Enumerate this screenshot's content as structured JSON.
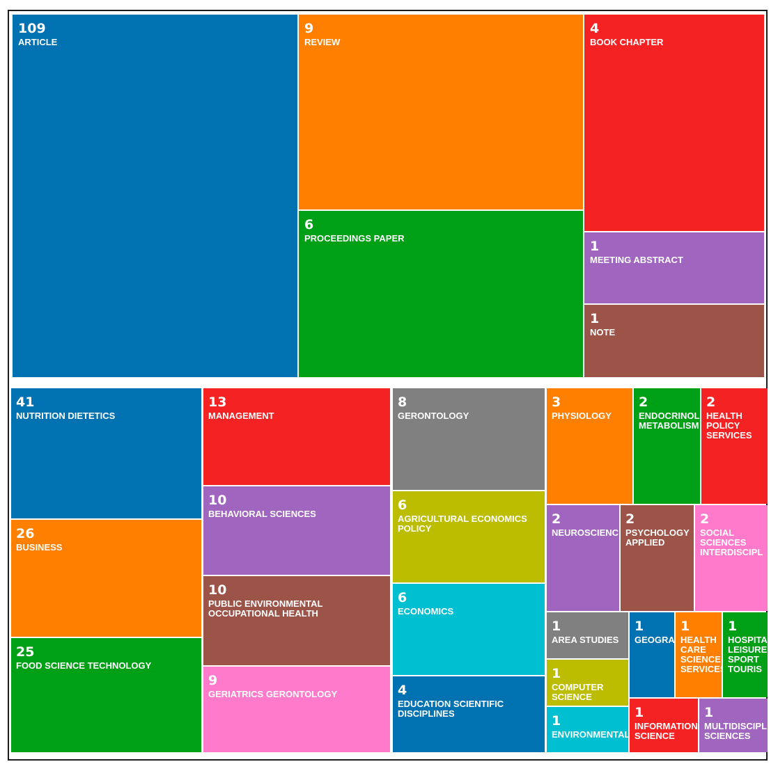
{
  "chart_data": [
    {
      "type": "treemap",
      "title": "",
      "palette": [
        "#0072b2",
        "#ff7f00",
        "#f52223",
        "#00a016",
        "#a065be",
        "#9c5348",
        "#ff7acb",
        "#808080",
        "#bcbd00",
        "#00bfd0"
      ],
      "cells": [
        {
          "value": 109,
          "label": "ARTICLE",
          "color": "#0072b2"
        },
        {
          "value": 9,
          "label": "REVIEW",
          "color": "#ff7f00"
        },
        {
          "value": 4,
          "label": "BOOK CHAPTER",
          "color": "#f52223"
        },
        {
          "value": 6,
          "label": "PROCEEDINGS PAPER",
          "color": "#00a016"
        },
        {
          "value": 1,
          "label": "MEETING ABSTRACT",
          "color": "#a065be"
        },
        {
          "value": 1,
          "label": "NOTE",
          "color": "#9c5348"
        }
      ]
    },
    {
      "type": "treemap",
      "title": "",
      "cells": [
        {
          "value": 41,
          "label": "NUTRITION DIETETICS",
          "color": "#0072b2"
        },
        {
          "value": 26,
          "label": "BUSINESS",
          "color": "#ff7f00"
        },
        {
          "value": 25,
          "label": "FOOD SCIENCE TECHNOLOGY",
          "color": "#00a016"
        },
        {
          "value": 13,
          "label": "MANAGEMENT",
          "color": "#f52223"
        },
        {
          "value": 10,
          "label": "BEHAVIORAL SCIENCES",
          "color": "#a065be"
        },
        {
          "value": 10,
          "label": "PUBLIC ENVIRONMENTAL\nOCCUPATIONAL HEALTH",
          "color": "#9c5348"
        },
        {
          "value": 9,
          "label": "GERIATRICS GERONTOLOGY",
          "color": "#ff7acb"
        },
        {
          "value": 8,
          "label": "GERONTOLOGY",
          "color": "#808080"
        },
        {
          "value": 6,
          "label": "AGRICULTURAL ECONOMICS\nPOLICY",
          "color": "#bcbd00"
        },
        {
          "value": 6,
          "label": "ECONOMICS",
          "color": "#00bfd0"
        },
        {
          "value": 4,
          "label": "EDUCATION SCIENTIFIC\nDISCIPLINES",
          "color": "#0072b2"
        },
        {
          "value": 3,
          "label": "PHYSIOLOGY",
          "color": "#ff7f00"
        },
        {
          "value": 2,
          "label": "ENDOCRINOL\nMETABOLISM",
          "color": "#00a016"
        },
        {
          "value": 2,
          "label": "HEALTH\nPOLICY\nSERVICES",
          "color": "#f52223"
        },
        {
          "value": 2,
          "label": "NEUROSCIENC",
          "color": "#a065be"
        },
        {
          "value": 2,
          "label": "PSYCHOLOGY\nAPPLIED",
          "color": "#9c5348"
        },
        {
          "value": 2,
          "label": "SOCIAL\nSCIENCES\nINTERDISCIPL",
          "color": "#ff7acb"
        },
        {
          "value": 1,
          "label": "AREA STUDIES",
          "color": "#808080"
        },
        {
          "value": 1,
          "label": "GEOGRA",
          "color": "#0072b2"
        },
        {
          "value": 1,
          "label": "HEALTH\nCARE\nSCIENCE\nSERVICES",
          "color": "#ff7f00"
        },
        {
          "value": 1,
          "label": "HOSPITA\nLEISURE\nSPORT\nTOURIS",
          "color": "#00a016"
        },
        {
          "value": 1,
          "label": "COMPUTER\nSCIENCE",
          "color": "#bcbd00"
        },
        {
          "value": 1,
          "label": "ENVIRONMENTAL",
          "color": "#00bfd0"
        },
        {
          "value": 1,
          "label": "INFORMATION\nSCIENCE",
          "color": "#f52223"
        },
        {
          "value": 1,
          "label": "MULTIDISCIPL\nSCIENCES",
          "color": "#a065be"
        }
      ]
    }
  ]
}
